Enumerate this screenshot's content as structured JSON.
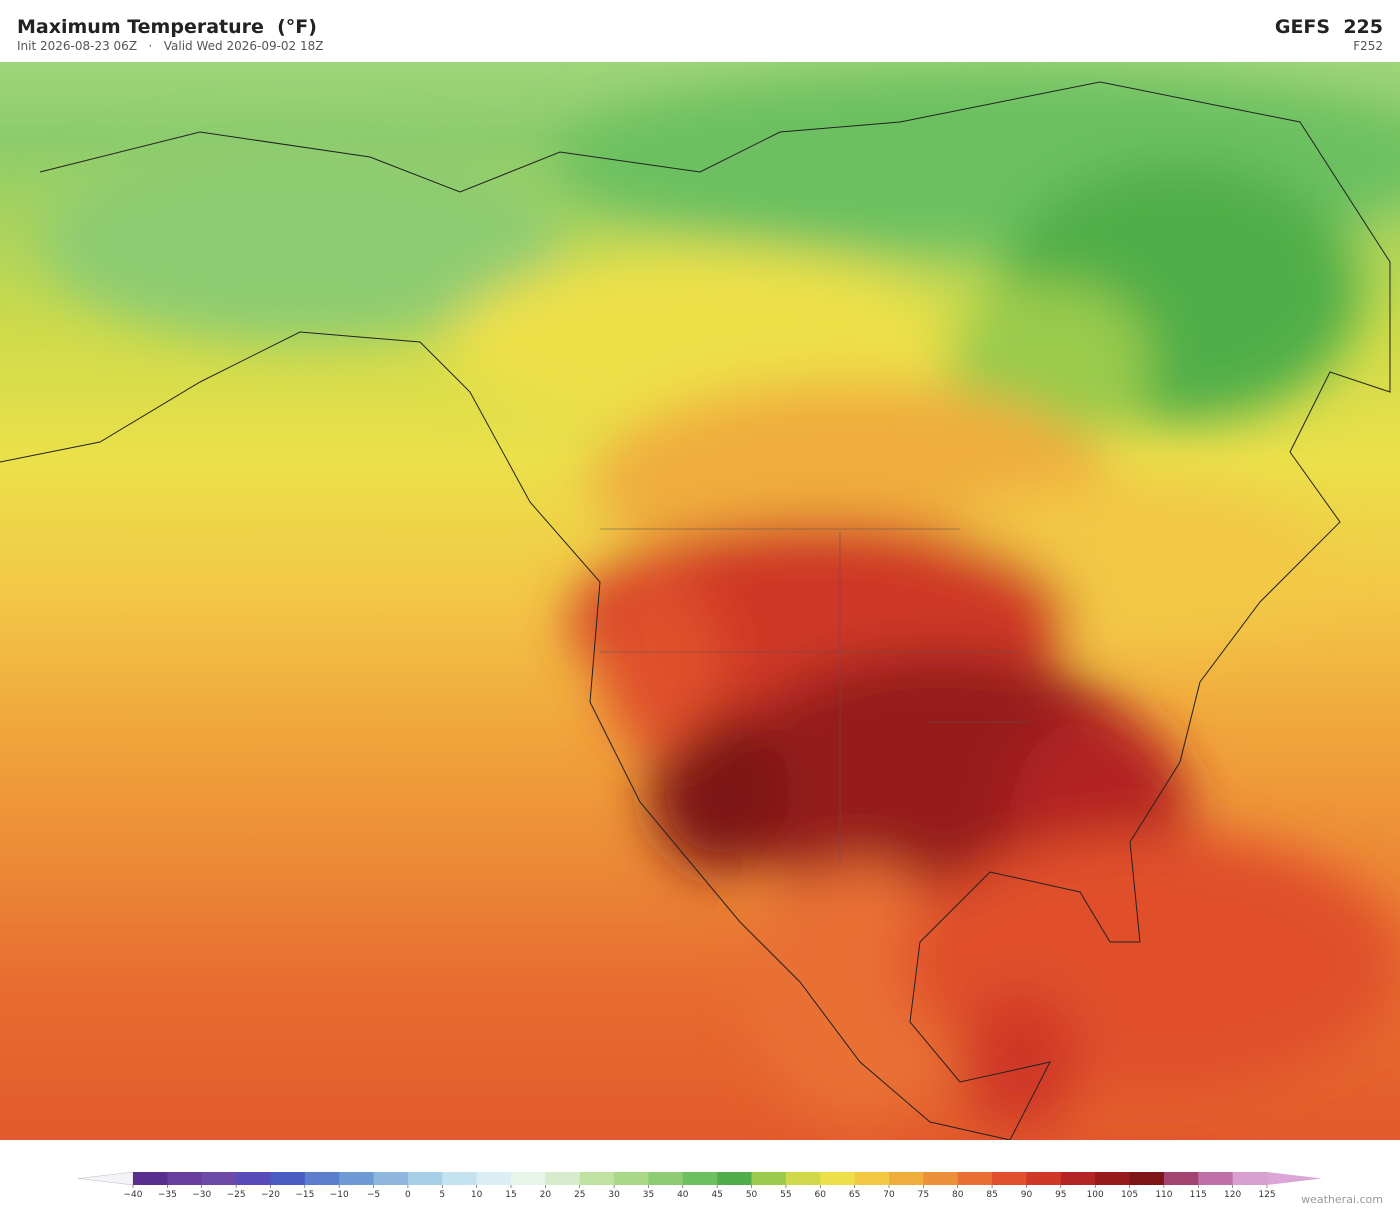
{
  "header": {
    "title": "Maximum Temperature  (°F)",
    "subtitle": "Init 2026-08-23 06Z   ·   Valid Wed 2026-09-02 18Z",
    "model": "GEFS  225",
    "forecast_hour": "F252"
  },
  "colorbar": {
    "ticks": [
      {
        "value": -40,
        "label": "−40"
      },
      {
        "value": -35,
        "label": "−35"
      },
      {
        "value": -30,
        "label": "−30"
      },
      {
        "value": -25,
        "label": "−25"
      },
      {
        "value": -20,
        "label": "−20"
      },
      {
        "value": -15,
        "label": "−15"
      },
      {
        "value": -10,
        "label": "−10"
      },
      {
        "value": -5,
        "label": "−5"
      },
      0,
      5,
      10,
      15,
      20,
      25,
      30,
      35,
      40,
      45,
      50,
      55,
      60,
      65,
      70,
      75,
      80,
      85,
      90,
      95,
      100,
      105,
      110,
      115,
      120,
      125
    ],
    "colors": [
      "#5a2d91",
      "#6a3da0",
      "#6e4aa8",
      "#5a4cb8",
      "#4a5cc4",
      "#5b7fcc",
      "#6e9ad6",
      "#8fb6df",
      "#a8cfe8",
      "#c4e2ef",
      "#dbeef4",
      "#e6f4ea",
      "#d7eccc",
      "#bfe2a0",
      "#a8d888",
      "#8dcc72",
      "#6cc060",
      "#4fae4a",
      "#9acb4c",
      "#cfd94a",
      "#ede04a",
      "#f2c844",
      "#f0ad3e",
      "#ec913a",
      "#e87034",
      "#e0502c",
      "#cf3826",
      "#b32424",
      "#961a1c",
      "#7d1518",
      "#a34470",
      "#c070a8",
      "#d7a0d0"
    ],
    "extend_low_color": "#f4f4f8",
    "extend_high_color": "#d9a6d6"
  },
  "footer": {
    "credit": "weatherai.com"
  }
}
